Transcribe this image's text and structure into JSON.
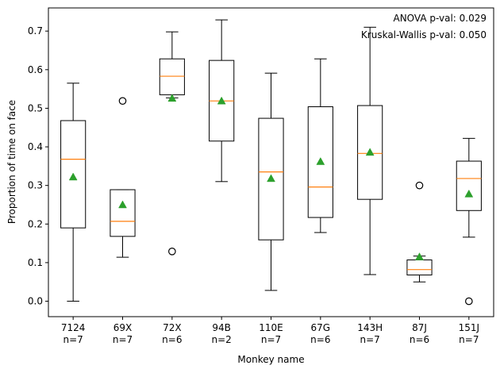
{
  "chart_data": {
    "type": "box",
    "xlabel": "Monkey name",
    "ylabel": "Proportion of time on face",
    "ylim": [
      -0.04,
      0.76
    ],
    "yticks": [
      "0.0",
      "0.1",
      "0.2",
      "0.3",
      "0.4",
      "0.5",
      "0.6",
      "0.7"
    ],
    "categories": [
      {
        "name": "7124",
        "n": "n=7",
        "whisker_low": 0.0,
        "q1": 0.19,
        "median": 0.368,
        "q3": 0.468,
        "whisker_high": 0.565,
        "mean": 0.322,
        "outliers": []
      },
      {
        "name": "69X",
        "n": "n=7",
        "whisker_low": 0.114,
        "q1": 0.168,
        "median": 0.207,
        "q3": 0.289,
        "whisker_high": 0.289,
        "mean": 0.25,
        "outliers": [
          0.519
        ]
      },
      {
        "name": "72X",
        "n": "n=6",
        "whisker_low": 0.527,
        "q1": 0.535,
        "median": 0.583,
        "q3": 0.628,
        "whisker_high": 0.698,
        "mean": 0.526,
        "outliers": [
          0.129
        ]
      },
      {
        "name": "94B",
        "n": "n=2",
        "whisker_low": 0.31,
        "q1": 0.415,
        "median": 0.519,
        "q3": 0.624,
        "whisker_high": 0.729,
        "mean": 0.519,
        "outliers": []
      },
      {
        "name": "110E",
        "n": "n=7",
        "whisker_low": 0.028,
        "q1": 0.159,
        "median": 0.335,
        "q3": 0.474,
        "whisker_high": 0.591,
        "mean": 0.318,
        "outliers": []
      },
      {
        "name": "67G",
        "n": "n=6",
        "whisker_low": 0.178,
        "q1": 0.217,
        "median": 0.296,
        "q3": 0.504,
        "whisker_high": 0.628,
        "mean": 0.362,
        "outliers": []
      },
      {
        "name": "143H",
        "n": "n=7",
        "whisker_low": 0.069,
        "q1": 0.264,
        "median": 0.383,
        "q3": 0.507,
        "whisker_high": 0.71,
        "mean": 0.386,
        "outliers": []
      },
      {
        "name": "87J",
        "n": "n=6",
        "whisker_low": 0.05,
        "q1": 0.068,
        "median": 0.082,
        "q3": 0.107,
        "whisker_high": 0.117,
        "mean": 0.115,
        "outliers": [
          0.3
        ]
      },
      {
        "name": "151J",
        "n": "n=7",
        "whisker_low": 0.166,
        "q1": 0.235,
        "median": 0.318,
        "q3": 0.363,
        "whisker_high": 0.422,
        "mean": 0.278,
        "outliers": [
          0.0
        ]
      }
    ],
    "annotations": [
      "ANOVA p-val: 0.029",
      "Kruskal-Wallis p-val: 0.050"
    ],
    "colors": {
      "box": "#000000",
      "median": "#ff7f0e",
      "mean": "#2ca02c",
      "outlier": "#000000"
    },
    "grid": false,
    "legend": "none"
  }
}
